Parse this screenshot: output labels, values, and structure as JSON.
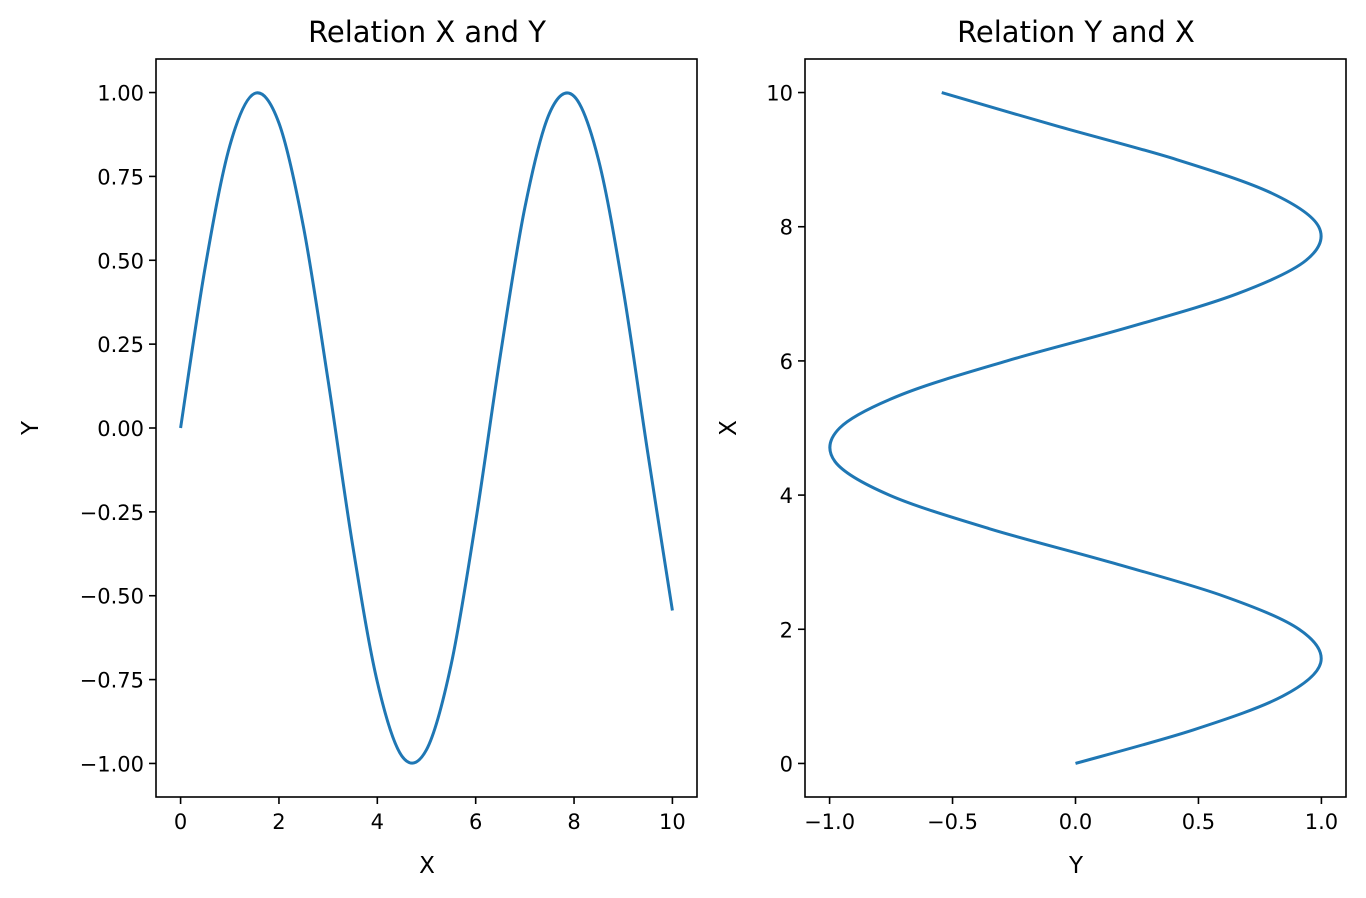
{
  "chart_data": [
    {
      "type": "line",
      "title": "Relation X and Y",
      "xlabel": "X",
      "ylabel": "Y",
      "xlim": [
        -0.5,
        10.5
      ],
      "ylim": [
        -1.1,
        1.1
      ],
      "xticks": [
        0,
        2,
        4,
        6,
        8,
        10
      ],
      "yticks": [
        -1.0,
        -0.75,
        -0.5,
        -0.25,
        0.0,
        0.25,
        0.5,
        0.75,
        1.0
      ],
      "xtick_labels": [
        "0",
        "2",
        "4",
        "6",
        "8",
        "10"
      ],
      "ytick_labels": [
        "−1.00",
        "−0.75",
        "−0.50",
        "−0.25",
        "0.00",
        "0.25",
        "0.50",
        "0.75",
        "1.00"
      ],
      "series": [
        {
          "color": "#1f77b4",
          "x": [
            0,
            0.5,
            1,
            1.5,
            2,
            2.5,
            3,
            3.5,
            4,
            4.5,
            5,
            5.5,
            6,
            6.5,
            7,
            7.5,
            8,
            8.5,
            9,
            9.5,
            10
          ],
          "y": [
            0,
            0.479,
            0.841,
            0.997,
            0.909,
            0.598,
            0.141,
            -0.351,
            -0.757,
            -0.978,
            -0.959,
            -0.706,
            -0.279,
            0.215,
            0.657,
            0.938,
            0.989,
            0.798,
            0.412,
            -0.075,
            -0.544
          ]
        }
      ],
      "grid": false
    },
    {
      "type": "line",
      "title": "Relation Y and X",
      "xlabel": "Y",
      "ylabel": "X",
      "xlim": [
        -1.1,
        1.1
      ],
      "ylim": [
        -0.5,
        10.5
      ],
      "xticks": [
        -1.0,
        -0.5,
        0.0,
        0.5,
        1.0
      ],
      "yticks": [
        0,
        2,
        4,
        6,
        8,
        10
      ],
      "xtick_labels": [
        "−1.0",
        "−0.5",
        "0.0",
        "0.5",
        "1.0"
      ],
      "ytick_labels": [
        "0",
        "2",
        "4",
        "6",
        "8",
        "10"
      ],
      "series": [
        {
          "color": "#1f77b4",
          "x": [
            0,
            0.479,
            0.841,
            0.997,
            0.909,
            0.598,
            0.141,
            -0.351,
            -0.757,
            -0.978,
            -0.959,
            -0.706,
            -0.279,
            0.215,
            0.657,
            0.938,
            0.989,
            0.798,
            0.412,
            -0.075,
            -0.544
          ],
          "y": [
            0,
            0.5,
            1,
            1.5,
            2,
            2.5,
            3,
            3.5,
            4,
            4.5,
            5,
            5.5,
            6,
            6.5,
            7,
            7.5,
            8,
            8.5,
            9,
            9.5,
            10
          ]
        }
      ],
      "grid": false
    }
  ]
}
